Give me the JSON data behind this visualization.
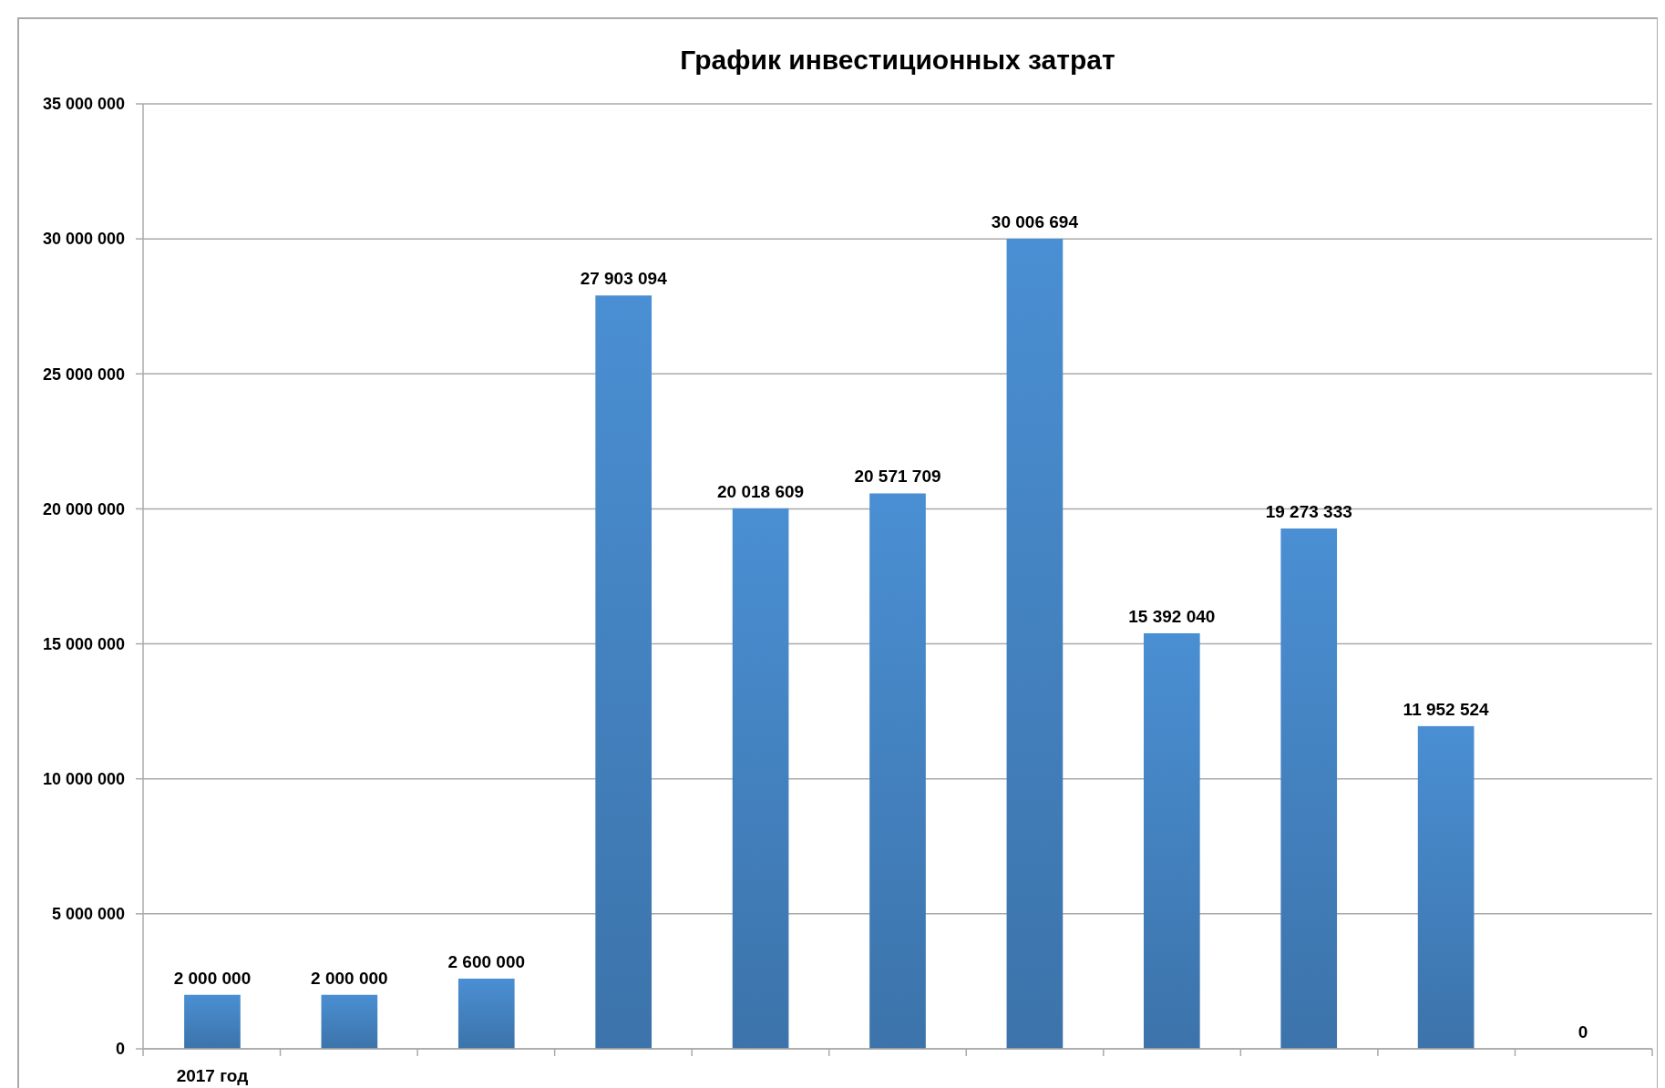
{
  "chart_data": {
    "type": "bar",
    "title": "График инвестиционных затрат",
    "categories": [
      "2017 год",
      null,
      null,
      null,
      null,
      null,
      null,
      null,
      null,
      null,
      null
    ],
    "values": [
      2000000,
      2000000,
      2600000,
      27903094,
      20018609,
      20571709,
      30006694,
      15392040,
      19273333,
      11952524,
      0
    ],
    "value_labels": [
      "2 000 000",
      "2 000 000",
      "2 600 000",
      "27 903 094",
      "20 018 609",
      "20 571 709",
      "30 006 694",
      "15 392 040",
      "19 273 333",
      "11 952 524",
      "0"
    ],
    "color": "#4a8fd3",
    "ylim": [
      0,
      35000000
    ],
    "yticks": [
      {
        "value": 0,
        "label": "0"
      },
      {
        "value": 5000000,
        "label": "5 000 000"
      },
      {
        "value": 10000000,
        "label": "10 000 000"
      },
      {
        "value": 15000000,
        "label": "15 000 000"
      },
      {
        "value": 20000000,
        "label": "20 000 000"
      },
      {
        "value": 25000000,
        "label": "25 000 000"
      },
      {
        "value": 30000000,
        "label": "30 000 000"
      },
      {
        "value": 35000000,
        "label": "35 000 000"
      }
    ],
    "grid": "y"
  }
}
